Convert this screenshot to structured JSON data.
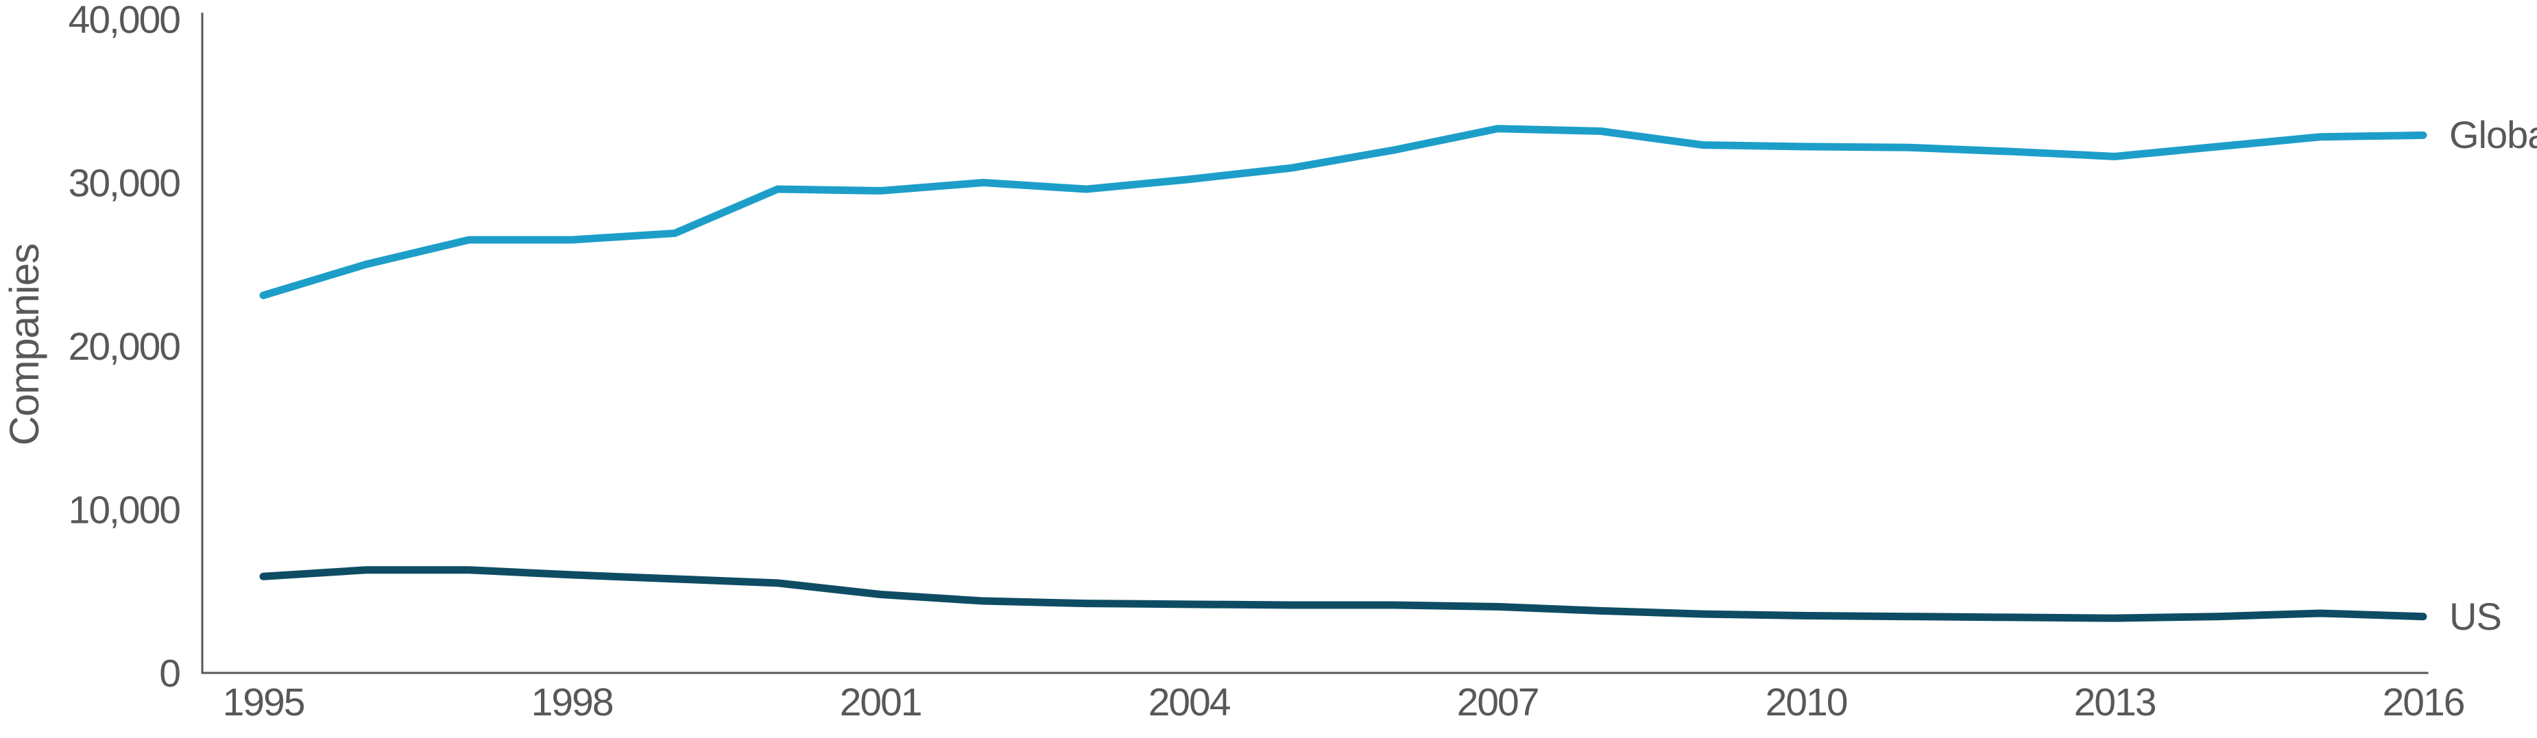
{
  "chart_data": {
    "type": "line",
    "title": "",
    "xlabel": "",
    "ylabel": "Companies",
    "x": [
      1995,
      1996,
      1997,
      1998,
      1999,
      2000,
      2001,
      2002,
      2003,
      2004,
      2005,
      2006,
      2007,
      2008,
      2009,
      2010,
      2011,
      2012,
      2013,
      2014,
      2015,
      2016
    ],
    "x_tick_labels": [
      "1995",
      "1998",
      "2001",
      "2004",
      "2007",
      "2010",
      "2013",
      "2016"
    ],
    "y_ticks": [
      0,
      10000,
      20000,
      30000,
      40000
    ],
    "y_tick_labels": [
      "0",
      "10,000",
      "20,000",
      "30,000",
      "40,000"
    ],
    "ylim": [
      0,
      40000
    ],
    "grid": false,
    "legend_position": "line-end-labels-right",
    "series": [
      {
        "name": "Global",
        "color": "#1d9ec9",
        "values": [
          23100,
          25000,
          26500,
          26500,
          26900,
          29600,
          29500,
          30000,
          29600,
          30200,
          30900,
          32000,
          33300,
          33150,
          32300,
          32200,
          32150,
          31900,
          31600,
          32200,
          32800,
          32900
        ]
      },
      {
        "name": "US",
        "color": "#0e4c64",
        "values": [
          5900,
          6300,
          6300,
          6000,
          5750,
          5500,
          4800,
          4400,
          4250,
          4200,
          4150,
          4150,
          4050,
          3800,
          3600,
          3500,
          3450,
          3400,
          3350,
          3450,
          3650,
          3450
        ]
      }
    ]
  },
  "labels": {
    "y_axis_title": "Companies",
    "series_global": "Global",
    "series_us": "US"
  },
  "colors": {
    "global_line": "#1d9ec9",
    "us_line": "#0e4c64",
    "axis": "#58585a",
    "text": "#58585a",
    "background": "#ffffff"
  }
}
